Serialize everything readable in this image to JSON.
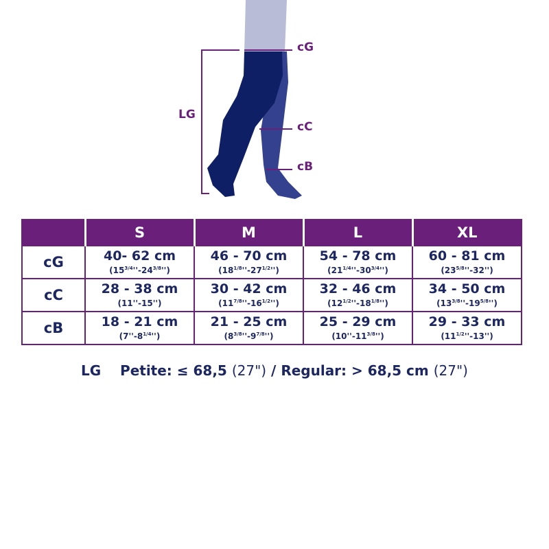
{
  "figure": {
    "labels": {
      "thigh": "cG",
      "calf": "cC",
      "ankle": "cB",
      "length": "LG"
    },
    "colors": {
      "front_leg": "#0f1f66",
      "back_leg": "#34418f",
      "skin": "#b8bcd6",
      "accent": "#6a1f7a"
    }
  },
  "table": {
    "sizes": [
      "S",
      "M",
      "L",
      "XL"
    ],
    "rows": [
      {
        "label": "cG",
        "cells": [
          {
            "cm": "40- 62 cm",
            "a": "15",
            "af": "3/4",
            "b": "24",
            "bf": "3/8"
          },
          {
            "cm": "46 - 70 cm",
            "a": "18",
            "af": "1/8",
            "b": "27",
            "bf": "1/2"
          },
          {
            "cm": "54 - 78 cm",
            "a": "21",
            "af": "1/4",
            "b": "30",
            "bf": "3/4"
          },
          {
            "cm": "60 - 81 cm",
            "a": "23",
            "af": "5/8",
            "b": "32",
            "bf": ""
          }
        ]
      },
      {
        "label": "cC",
        "cells": [
          {
            "cm": "28 - 38 cm",
            "a": "11",
            "af": "",
            "b": "15",
            "bf": ""
          },
          {
            "cm": "30 - 42 cm",
            "a": "11",
            "af": "7/8",
            "b": "16",
            "bf": "1/2"
          },
          {
            "cm": "32 - 46 cm",
            "a": "12",
            "af": "1/2",
            "b": "18",
            "bf": "1/8"
          },
          {
            "cm": "34 - 50 cm",
            "a": "13",
            "af": "3/8",
            "b": "19",
            "bf": "5/8"
          }
        ]
      },
      {
        "label": "cB",
        "cells": [
          {
            "cm": "18 - 21 cm",
            "a": "7",
            "af": "",
            "b": "8",
            "bf": "1/4"
          },
          {
            "cm": "21 - 25 cm",
            "a": "8",
            "af": "3/8",
            "b": "9",
            "bf": "7/8"
          },
          {
            "cm": "25 - 29 cm",
            "a": "10",
            "af": "",
            "b": "11",
            "bf": "3/8"
          },
          {
            "cm": "29 - 33 cm",
            "a": "11",
            "af": "1/2",
            "b": "13",
            "bf": ""
          }
        ]
      }
    ]
  },
  "footer": {
    "lg": "LG",
    "petite": "Petite: ≤ 68,5",
    "petite_in": "(27\")",
    "sep": "/ Regular: > 68,5 cm",
    "regular_in": "(27\")"
  }
}
